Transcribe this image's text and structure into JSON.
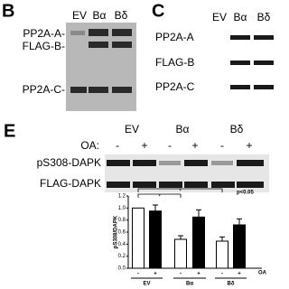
{
  "panel_b": {
    "label": "B",
    "lanes": [
      "EV",
      "Bα",
      "Bδ"
    ],
    "rows": [
      "PP2A-A-",
      "FLAG-B-",
      "PP2A-C-"
    ]
  },
  "panel_c": {
    "label": "C",
    "lanes": [
      "EV",
      "Bα",
      "Bδ"
    ],
    "rows": [
      "PP2A-A",
      "FLAG-B",
      "PP2A-C"
    ]
  },
  "panel_e": {
    "label": "E",
    "treatment_label": "OA:",
    "groups": [
      "EV",
      "Bα",
      "Bδ"
    ],
    "treatment": [
      "-",
      "+",
      "-",
      "+",
      "-",
      "+"
    ],
    "rows": [
      "pS308-DAPK",
      "FLAG-DAPK"
    ]
  },
  "chart_data": {
    "type": "bar",
    "y_label": "pS308/DAPK",
    "annotation": "p<0.05",
    "significance": [
      "*",
      "*"
    ],
    "categories": [
      "-",
      "+",
      "-",
      "+",
      "-",
      "+"
    ],
    "groups": [
      "EV",
      "Bα",
      "Bδ"
    ],
    "x_label": "OA",
    "values": [
      1.0,
      0.95,
      0.48,
      0.85,
      0.45,
      0.72
    ],
    "errors": [
      null,
      0.1,
      0.06,
      0.12,
      0.07,
      0.1
    ],
    "colors": [
      "#ffffff",
      "#000000",
      "#ffffff",
      "#000000",
      "#ffffff",
      "#000000"
    ],
    "ylim": [
      0,
      1.2
    ],
    "yticks": [
      {
        "value": 0,
        "label": "0.0"
      },
      {
        "value": 0.2,
        "label": "0.2"
      },
      {
        "value": 0.4,
        "label": "0.4"
      },
      {
        "value": 0.6,
        "label": "0.6"
      },
      {
        "value": 0.8,
        "label": "0.8"
      },
      {
        "value": 1,
        "label": "1.0"
      },
      {
        "value": 1.2,
        "label": "1.2"
      }
    ]
  }
}
